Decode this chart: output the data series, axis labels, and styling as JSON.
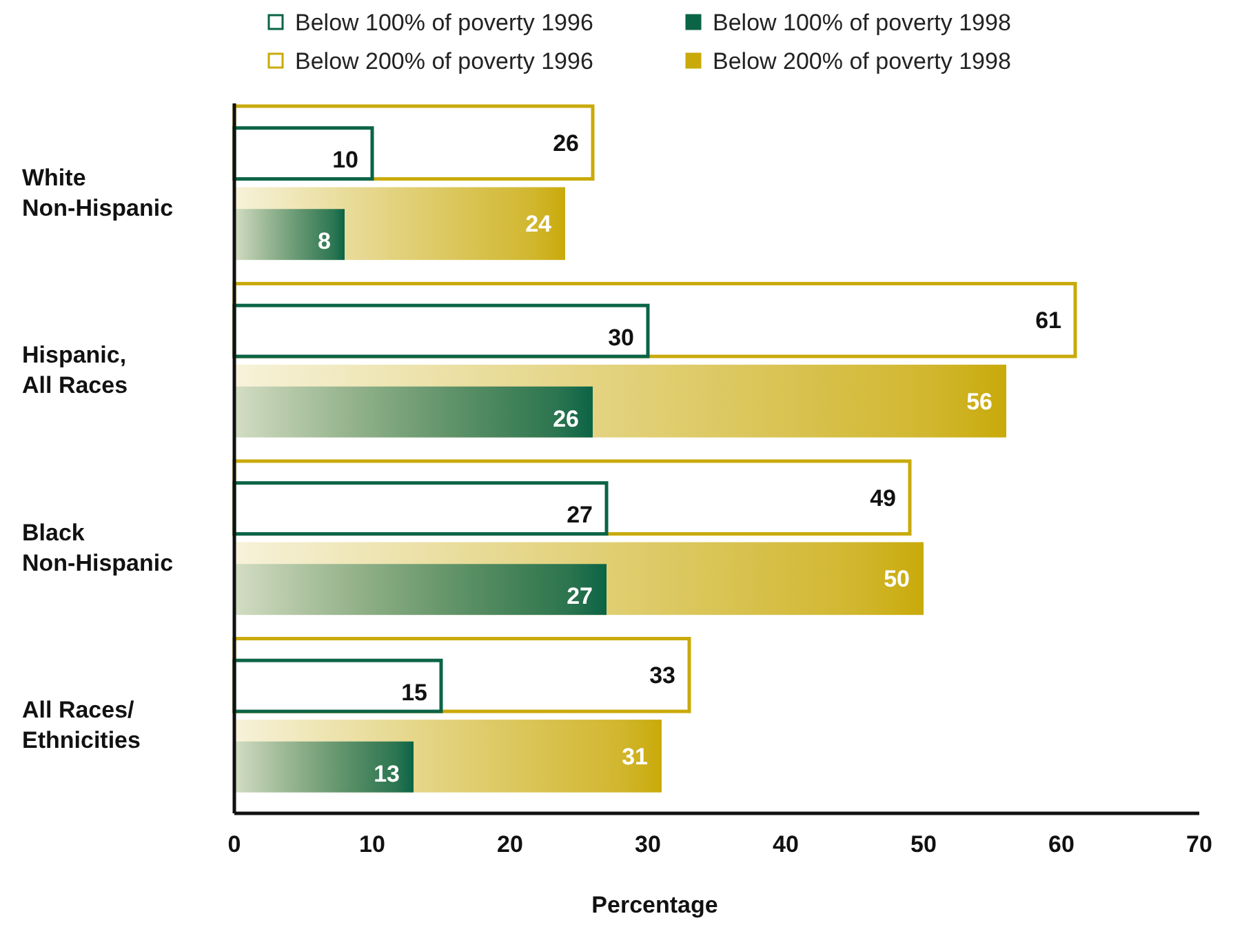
{
  "chart_data": {
    "type": "bar",
    "orientation": "horizontal",
    "xlabel": "Percentage",
    "categories": [
      "White\nNon-Hispanic",
      "Hispanic,\nAll Races",
      "Black\nNon-Hispanic",
      "All Races/\nEthnicities"
    ],
    "series": [
      {
        "name": "Below 100% of poverty 1996",
        "color": "#0b6446",
        "values": [
          10,
          30,
          27,
          15
        ]
      },
      {
        "name": "Below 200% of poverty 1996",
        "color": "#c9aa0a",
        "values": [
          26,
          61,
          49,
          33
        ]
      },
      {
        "name": "Below 100% of poverty 1998",
        "color": "#0b6446",
        "values": [
          8,
          26,
          27,
          13
        ]
      },
      {
        "name": "Below 200% of poverty 1998",
        "color": "#c9aa0a",
        "values": [
          24,
          56,
          50,
          31
        ]
      }
    ],
    "xlim": [
      0,
      70
    ],
    "xticks": [
      0,
      10,
      20,
      30,
      40,
      50,
      60,
      70
    ],
    "data_labels": true,
    "legend": "top",
    "grid": false
  }
}
